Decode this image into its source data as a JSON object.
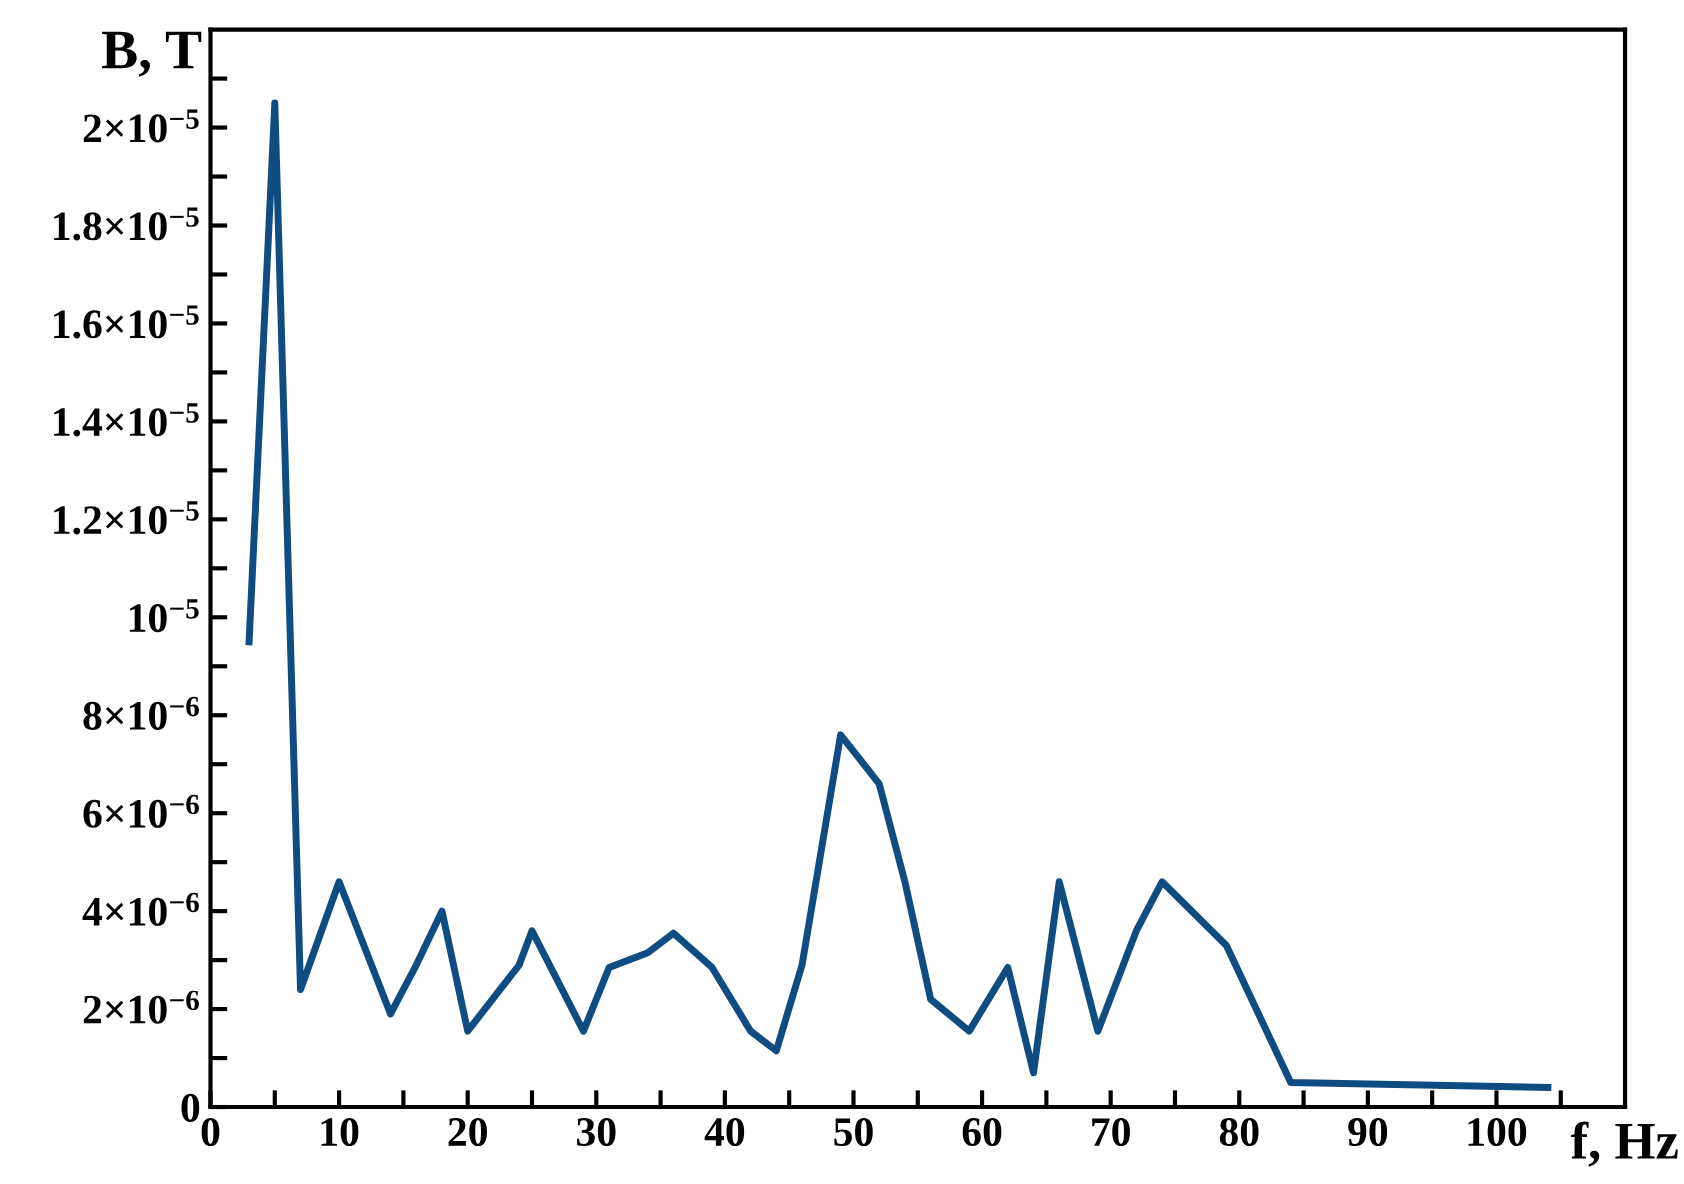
{
  "chart_data": {
    "type": "line",
    "xlabel": "f, Hz",
    "ylabel": "B, T",
    "x": [
      3,
      5,
      7,
      10,
      14,
      16,
      18,
      20,
      24,
      25,
      29,
      31,
      34,
      36,
      39,
      42,
      44,
      46,
      49,
      52,
      54,
      56,
      59,
      62,
      64,
      66,
      69,
      72,
      74,
      79,
      84,
      104
    ],
    "series": [
      {
        "color": "#0f4c81",
        "values": [
          9.5e-06,
          2.05e-05,
          2.4e-06,
          4.6e-06,
          1.9e-06,
          2.9e-06,
          4e-06,
          1.55e-06,
          2.9e-06,
          3.6e-06,
          1.55e-06,
          2.85e-06,
          3.15e-06,
          3.55e-06,
          2.85e-06,
          1.55e-06,
          1.15e-06,
          2.9e-06,
          7.6e-06,
          6.6e-06,
          4.6e-06,
          2.2e-06,
          1.55e-06,
          2.85e-06,
          7e-07,
          4.6e-06,
          1.55e-06,
          3.6e-06,
          4.6e-06,
          3.3e-06,
          5e-07,
          4e-07
        ]
      }
    ],
    "xlim": [
      0,
      110
    ],
    "ylim": [
      0,
      2.2e-05
    ],
    "xticks": [
      0,
      {
        "value": 5,
        "label": null
      },
      10,
      {
        "value": 15,
        "label": null
      },
      20,
      {
        "value": 25,
        "label": null
      },
      30,
      {
        "value": 35,
        "label": null
      },
      40,
      {
        "value": 45,
        "label": null
      },
      50,
      {
        "value": 55,
        "label": null
      },
      60,
      {
        "value": 65,
        "label": null
      },
      70,
      {
        "value": 75,
        "label": null
      },
      80,
      {
        "value": 85,
        "label": null
      },
      90,
      {
        "value": 95,
        "label": null
      },
      100,
      {
        "value": 105,
        "label": null
      }
    ],
    "yticks": [
      {
        "value": 0,
        "label": "0"
      },
      {
        "value": 1e-06,
        "label": null
      },
      {
        "value": 2e-06,
        "label": "2×10$^{−6}$"
      },
      {
        "value": 3e-06,
        "label": null
      },
      {
        "value": 4e-06,
        "label": "4×10$^{−6}$"
      },
      {
        "value": 5e-06,
        "label": null
      },
      {
        "value": 6e-06,
        "label": "6×10$^{−6}$"
      },
      {
        "value": 7e-06,
        "label": null
      },
      {
        "value": 8e-06,
        "label": "8×10$^{−6}$"
      },
      {
        "value": 9e-06,
        "label": null
      },
      {
        "value": 1e-05,
        "label": "10$^{−5}$"
      },
      {
        "value": 1.1e-05,
        "label": null
      },
      {
        "value": 1.2e-05,
        "label": "1.2×10$^{−5}$"
      },
      {
        "value": 1.3e-05,
        "label": null
      },
      {
        "value": 1.4e-05,
        "label": "1.4×10$^{−5}$"
      },
      {
        "value": 1.5e-05,
        "label": null
      },
      {
        "value": 1.6e-05,
        "label": "1.6×10$^{−5}$"
      },
      {
        "value": 1.7e-05,
        "label": null
      },
      {
        "value": 1.8e-05,
        "label": "1.8×10$^{−5}$"
      },
      {
        "value": 1.9e-05,
        "label": null
      },
      {
        "value": 2e-05,
        "label": "2×10$^{−5}$"
      },
      {
        "value": 2.1e-05,
        "label": null
      }
    ],
    "line_style": "solid",
    "marker": "none",
    "grid": false,
    "legend": false
  }
}
